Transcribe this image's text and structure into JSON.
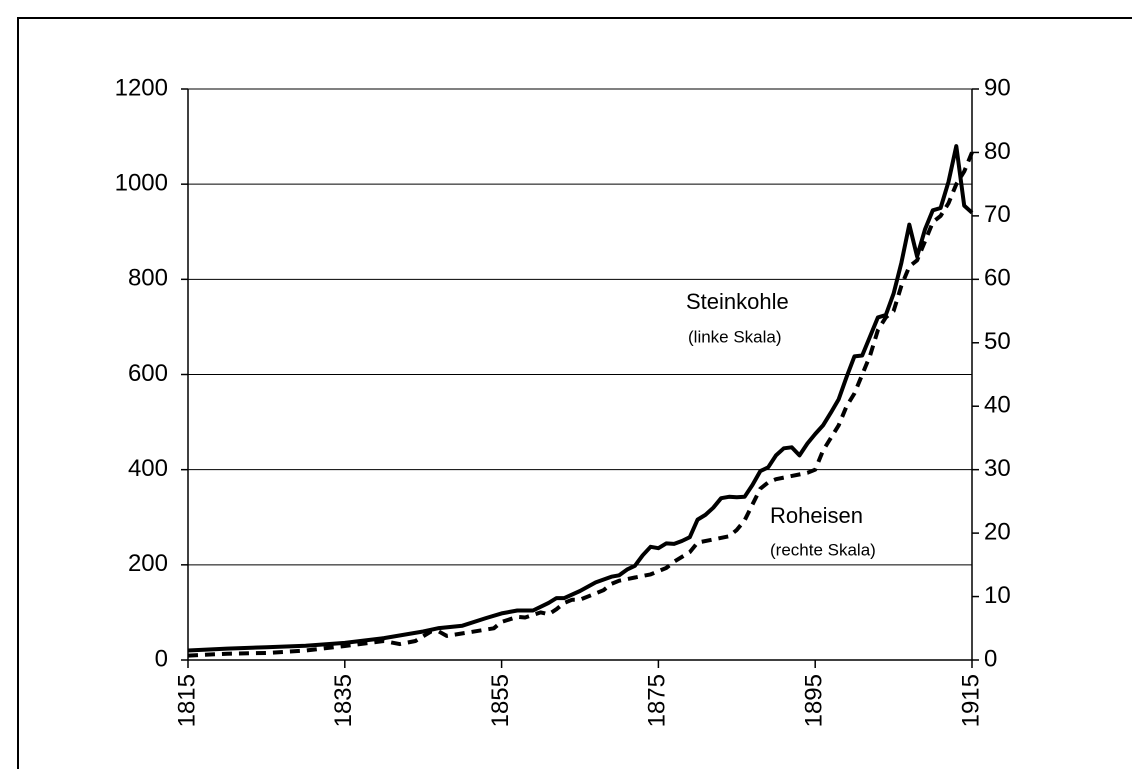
{
  "chart_data": {
    "type": "line",
    "xlim": [
      1815,
      1915
    ],
    "xticks": [
      1815,
      1835,
      1855,
      1875,
      1895,
      1915
    ],
    "ylim": [
      0,
      1200
    ],
    "yticks": [
      0,
      200,
      400,
      600,
      800,
      1000,
      1200
    ],
    "y2lim": [
      0,
      90
    ],
    "y2ticks": [
      0,
      10,
      20,
      30,
      40,
      50,
      60,
      70,
      80,
      90
    ],
    "grid": true,
    "series": [
      {
        "name": "Steinkohle",
        "color": "#000000",
        "line_style": "solid",
        "annotation": "(linke Skala)",
        "x": [
          1815,
          1820,
          1825,
          1830,
          1835,
          1840,
          1845,
          1847,
          1850,
          1853,
          1855,
          1857,
          1859,
          1861,
          1862,
          1863,
          1865,
          1867,
          1869,
          1870,
          1871,
          1872,
          1873,
          1874,
          1875,
          1876,
          1877,
          1878,
          1879,
          1880,
          1881,
          1882,
          1883,
          1884,
          1885,
          1886,
          1887,
          1888,
          1889,
          1890,
          1891,
          1892,
          1893,
          1894,
          1895,
          1896,
          1897,
          1898,
          1899,
          1900,
          1901,
          1902,
          1903,
          1904,
          1905,
          1906,
          1907,
          1908,
          1909,
          1910,
          1911,
          1912,
          1913,
          1914,
          1915
        ],
        "values": [
          20,
          24,
          27,
          30,
          36,
          46,
          60,
          67,
          72,
          88,
          98,
          104,
          104,
          120,
          130,
          130,
          145,
          163,
          175,
          178,
          190,
          198,
          220,
          238,
          235,
          245,
          244,
          250,
          258,
          295,
          305,
          320,
          340,
          343,
          342,
          343,
          368,
          397,
          405,
          430,
          445,
          447,
          430,
          455,
          475,
          493,
          520,
          548,
          595,
          638,
          640,
          680,
          720,
          725,
          770,
          835,
          915,
          848,
          905,
          945,
          950,
          1005,
          1080,
          955,
          940
        ]
      },
      {
        "name": "Roheisen",
        "color": "#000000",
        "line_style": "dashed",
        "axis": "y2",
        "annotation": "(rechte Skala)",
        "x": [
          1815,
          1820,
          1825,
          1830,
          1835,
          1840,
          1842,
          1844,
          1846,
          1847,
          1848,
          1850,
          1854,
          1855,
          1857,
          1858,
          1860,
          1861,
          1862,
          1863,
          1864,
          1865,
          1867,
          1868,
          1869,
          1870,
          1872,
          1874,
          1875,
          1876,
          1877,
          1879,
          1880,
          1884,
          1885,
          1886,
          1888,
          1889,
          1890,
          1894,
          1895,
          1896,
          1898,
          1899,
          1900,
          1902,
          1903,
          1904,
          1905,
          1906,
          1907,
          1908,
          1909,
          1910,
          1911,
          1912,
          1913,
          1914,
          1915
        ],
        "values": [
          0.7,
          1,
          1.1,
          1.5,
          2.2,
          3,
          2.5,
          3,
          4.5,
          4.5,
          3.8,
          4.2,
          5,
          6,
          6.8,
          6.7,
          7.5,
          7.2,
          8,
          9,
          9.5,
          9.5,
          10.5,
          11,
          12,
          12.5,
          13,
          13.5,
          14,
          14.5,
          15.5,
          17,
          18.5,
          19.5,
          20.5,
          22,
          27,
          28,
          28.5,
          29.5,
          30,
          33,
          37,
          40,
          42,
          48,
          52,
          54,
          55,
          59,
          62,
          63,
          66,
          69,
          70,
          72,
          75,
          77,
          80
        ]
      }
    ]
  }
}
